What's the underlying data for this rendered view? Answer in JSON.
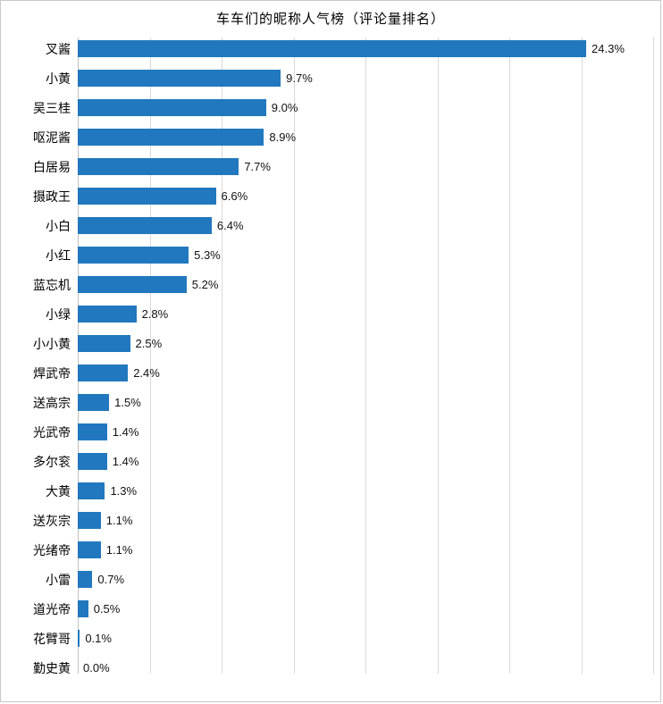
{
  "chart_data": {
    "type": "bar",
    "orientation": "horizontal",
    "title": "车车们的昵称人气榜（评论量排名）",
    "categories": [
      "叉酱",
      "小黄",
      "吴三桂",
      "呕泥酱",
      "白居易",
      "摄政王",
      "小白",
      "小红",
      "蓝忘机",
      "小绿",
      "小小黄",
      "焊武帝",
      "送高宗",
      "光武帝",
      "多尔衮",
      "大黄",
      "送灰宗",
      "光绪帝",
      "小雷",
      "道光帝",
      "花臂哥",
      "勤史黄"
    ],
    "values": [
      24.3,
      9.7,
      9.0,
      8.9,
      7.7,
      6.6,
      6.4,
      5.3,
      5.2,
      2.8,
      2.5,
      2.4,
      1.5,
      1.4,
      1.4,
      1.3,
      1.1,
      1.1,
      0.7,
      0.5,
      0.1,
      0.0
    ],
    "value_labels": [
      "24.3%",
      "9.7%",
      "9.0%",
      "8.9%",
      "7.7%",
      "6.6%",
      "6.4%",
      "5.3%",
      "5.2%",
      "2.8%",
      "2.5%",
      "2.4%",
      "1.5%",
      "1.4%",
      "1.4%",
      "1.3%",
      "1.1%",
      "1.1%",
      "0.7%",
      "0.5%",
      "0.1%",
      "0.0%"
    ],
    "xlabel": "",
    "ylabel": "",
    "axis_max": 27.5,
    "gridline_count": 8,
    "grid": true,
    "legend": "none",
    "bar_color": "#2178be",
    "gridline_color": "#d9d9d9"
  }
}
